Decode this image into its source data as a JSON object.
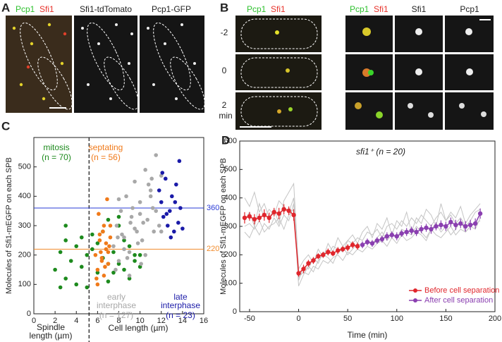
{
  "panel_a": {
    "label": "A",
    "merge": [
      "Pcp1",
      "Sfi1"
    ],
    "channels": [
      "Sfi1-tdTomato",
      "Pcp1-GFP"
    ]
  },
  "panel_b": {
    "label": "B",
    "merge": [
      "Pcp1",
      "Sfi1"
    ],
    "channels": [
      "Sfi1",
      "Pcp1"
    ],
    "times": [
      "-2",
      "0",
      "2"
    ],
    "time_unit": "min"
  },
  "chart_data": [
    {
      "type": "scatter",
      "label": "C",
      "ylabel": "Molecules of Sfi1-mEGFP on each SPB",
      "xlabel_left": [
        "Spindle",
        "length (µm)"
      ],
      "xlabel_right": "Cell length (µm)",
      "xlim": [
        0,
        16
      ],
      "ylim": [
        0,
        600
      ],
      "xticks": [
        0,
        2,
        4,
        6,
        8,
        10,
        12,
        14,
        16
      ],
      "yticks": [
        0,
        100,
        200,
        300,
        400,
        500
      ],
      "divider_x": 5.2,
      "reference_lines": [
        {
          "value": 360,
          "color": "#2a3bd6"
        },
        {
          "value": 220,
          "color": "#f08a2a"
        }
      ],
      "series": [
        {
          "name": [
            "mitosis"
          ],
          "n_label": "(n = 70)",
          "color": "#1d8a1d",
          "x": [
            2,
            2.5,
            3,
            3,
            3.5,
            4,
            4,
            4.5,
            5,
            5,
            5.5,
            6,
            6,
            6.5,
            7,
            7,
            7.5,
            8,
            8,
            8.5,
            9,
            9,
            9.5,
            10,
            3,
            4.5,
            6.5,
            7.5,
            8.5,
            9.5,
            2.5,
            5.5,
            7,
            8,
            10
          ],
          "y": [
            150,
            210,
            120,
            250,
            180,
            100,
            230,
            160,
            200,
            90,
            270,
            140,
            240,
            190,
            110,
            320,
            210,
            170,
            330,
            150,
            230,
            120,
            200,
            160,
            300,
            260,
            280,
            140,
            250,
            180,
            90,
            220,
            170,
            300,
            200
          ]
        },
        {
          "name": [
            "septating"
          ],
          "n_label": "(n = 56)",
          "color": "#f07a1a",
          "x": [
            5.8,
            6,
            6.2,
            6.4,
            6.6,
            6.8,
            7,
            7.2,
            5.9,
            6.1,
            6.3,
            6.5,
            6.7,
            6.9,
            7.1,
            6,
            6.4,
            6.8,
            7.2,
            6.2,
            6.6,
            7
          ],
          "y": [
            200,
            150,
            250,
            180,
            300,
            220,
            170,
            260,
            120,
            340,
            210,
            280,
            160,
            390,
            230,
            100,
            190,
            240,
            300,
            270,
            130,
            210
          ]
        },
        {
          "name": [
            "early",
            "interphase"
          ],
          "n_label": "(n = 127)",
          "color": "#a8a8a8",
          "x": [
            7.5,
            7.8,
            8,
            8.2,
            8.5,
            8.7,
            9,
            9.2,
            9.5,
            9.7,
            10,
            10.2,
            10.5,
            10.7,
            11,
            11.2,
            11.5,
            11.8,
            12,
            7.7,
            8.3,
            8.8,
            9.3,
            9.8,
            10.3,
            10.8,
            11.3,
            8,
            9,
            10,
            11,
            12,
            8.5,
            9.5,
            10.5,
            11.5,
            7.9,
            9.1,
            10.1,
            11.1
          ],
          "y": [
            230,
            300,
            180,
            350,
            260,
            400,
            210,
            330,
            450,
            280,
            380,
            250,
            490,
            320,
            420,
            360,
            540,
            300,
            470,
            150,
            270,
            190,
            360,
            240,
            310,
            440,
            280,
            390,
            130,
            340,
            400,
            280,
            220,
            290,
            200,
            350,
            260,
            310,
            170,
            460
          ]
        },
        {
          "name": [
            "late",
            "interphase"
          ],
          "n_label": "(n = 23)",
          "color": "#1a1aa8",
          "x": [
            11.8,
            12,
            12.2,
            12.4,
            12.6,
            12.8,
            13,
            13.2,
            13.4,
            13.6,
            13.8,
            14,
            12.1,
            12.9,
            13.3,
            12.5,
            13.7
          ],
          "y": [
            420,
            380,
            330,
            460,
            300,
            350,
            400,
            280,
            440,
            310,
            360,
            290,
            480,
            260,
            380,
            340,
            520
          ]
        }
      ]
    },
    {
      "type": "line",
      "label": "D",
      "title": "sfi1⁺ (n = 20)",
      "xlabel": "Time (min)",
      "ylabel": "Molecules of Sfi1-mEGFP on each SPB",
      "xlim": [
        -60,
        200
      ],
      "ylim": [
        0,
        600
      ],
      "xticks": [
        -50,
        0,
        50,
        100,
        150,
        200
      ],
      "yticks": [
        0,
        100,
        200,
        300,
        400,
        500,
        600
      ],
      "legend": "lower right",
      "x": [
        -55,
        -50,
        -45,
        -40,
        -35,
        -30,
        -25,
        -20,
        -15,
        -10,
        -5,
        0,
        5,
        10,
        15,
        20,
        25,
        30,
        35,
        40,
        45,
        50,
        55,
        60,
        65,
        70,
        75,
        80,
        85,
        90,
        95,
        100,
        105,
        110,
        115,
        120,
        125,
        130,
        135,
        140,
        145,
        150,
        155,
        160,
        165,
        170,
        175,
        180,
        185
      ],
      "traces": [
        {
          "color": "#c4c4c4",
          "values": [
            320,
            350,
            300,
            380,
            330,
            360,
            340,
            390,
            370,
            350,
            400,
            110,
            160,
            150,
            190,
            170,
            210,
            200,
            230,
            220,
            210,
            250,
            240,
            260,
            250,
            280,
            270,
            290,
            260,
            300,
            310,
            290,
            320,
            300,
            330,
            310,
            340,
            320,
            300,
            330,
            350,
            320,
            340,
            310,
            330,
            300,
            320,
            350,
            360
          ]
        },
        {
          "color": "#c4c4c4",
          "values": [
            280,
            260,
            300,
            270,
            310,
            290,
            330,
            300,
            340,
            320,
            380,
            90,
            130,
            160,
            140,
            180,
            200,
            190,
            170,
            210,
            230,
            200,
            220,
            240,
            230,
            250,
            240,
            260,
            280,
            250,
            270,
            260,
            290,
            280,
            270,
            300,
            280,
            260,
            290,
            310,
            280,
            300,
            270,
            290,
            320,
            280,
            300,
            290,
            330
          ]
        },
        {
          "color": "#c4c4c4",
          "values": [
            400,
            370,
            420,
            350,
            380,
            330,
            360,
            310,
            390,
            420,
            450,
            150,
            180,
            200,
            170,
            220,
            190,
            240,
            210,
            260,
            230,
            250,
            270,
            240,
            280,
            300,
            260,
            310,
            290,
            330,
            270,
            320,
            300,
            350,
            280,
            330,
            310,
            360,
            340,
            300,
            380,
            320,
            350,
            330,
            370,
            310,
            340,
            360,
            380
          ]
        },
        {
          "color": "#c4c4c4",
          "values": [
            300,
            310,
            290,
            320,
            280,
            300,
            310,
            330,
            290,
            340,
            360,
            120,
            140,
            130,
            160,
            150,
            180,
            170,
            190,
            200,
            180,
            210,
            200,
            220,
            210,
            230,
            220,
            240,
            250,
            230,
            260,
            240,
            270,
            250,
            260,
            280,
            270,
            250,
            290,
            270,
            260,
            280,
            300,
            270,
            290,
            280,
            300,
            310,
            320
          ]
        }
      ],
      "series": [
        {
          "name": "Before cell separation",
          "color": "#e0262c",
          "values": [
            330,
            335,
            325,
            330,
            340,
            330,
            350,
            345,
            360,
            355,
            340,
            135,
            150,
            170,
            180,
            195,
            200,
            210,
            205,
            215,
            220,
            225,
            235,
            230,
            null,
            null,
            null,
            null,
            null,
            null,
            null,
            null,
            null,
            null,
            null,
            null,
            null,
            null,
            null,
            null,
            null,
            null,
            null,
            null,
            null,
            null,
            null,
            null,
            null
          ],
          "errors": [
            20,
            15,
            18,
            15,
            20,
            18,
            15,
            20,
            18,
            15,
            20,
            12,
            15,
            12,
            12,
            10,
            10,
            12,
            10,
            12,
            10,
            12,
            12,
            12,
            null,
            null,
            null,
            null,
            null,
            null,
            null,
            null,
            null,
            null,
            null,
            null,
            null,
            null,
            null,
            null,
            null,
            null,
            null,
            null,
            null,
            null,
            null,
            null,
            null
          ]
        },
        {
          "name": "After cell separation",
          "color": "#8a3fb0",
          "values": [
            null,
            null,
            null,
            null,
            null,
            null,
            null,
            null,
            null,
            null,
            null,
            null,
            null,
            null,
            null,
            null,
            null,
            null,
            null,
            null,
            null,
            null,
            null,
            null,
            235,
            245,
            240,
            250,
            255,
            265,
            270,
            265,
            275,
            280,
            285,
            280,
            290,
            295,
            290,
            300,
            305,
            300,
            315,
            305,
            310,
            300,
            305,
            310,
            345
          ],
          "errors": [
            null,
            null,
            null,
            null,
            null,
            null,
            null,
            null,
            null,
            null,
            null,
            null,
            null,
            null,
            null,
            null,
            null,
            null,
            null,
            null,
            null,
            null,
            null,
            null,
            12,
            12,
            12,
            12,
            12,
            14,
            12,
            14,
            12,
            14,
            14,
            14,
            14,
            14,
            16,
            14,
            16,
            16,
            16,
            18,
            16,
            18,
            18,
            18,
            18
          ]
        }
      ]
    }
  ]
}
